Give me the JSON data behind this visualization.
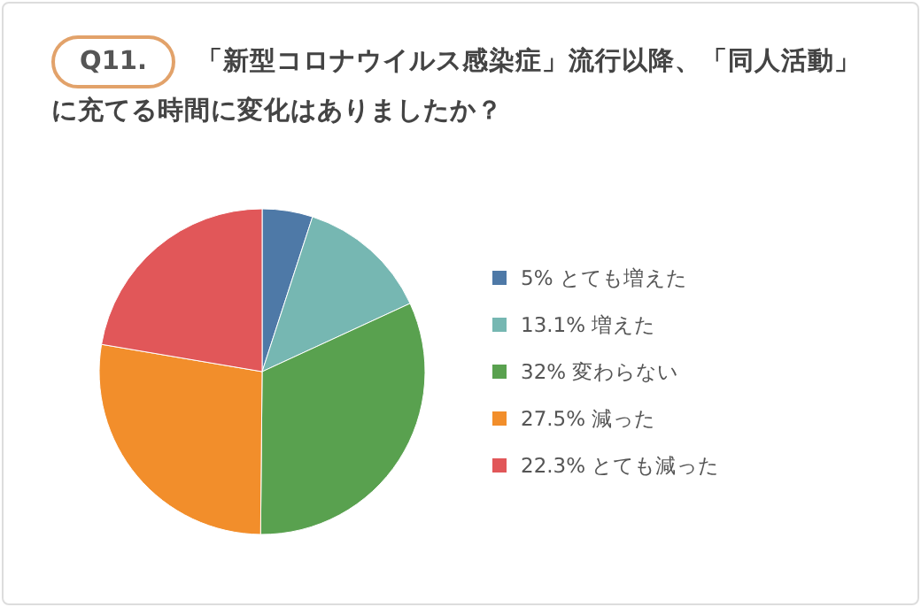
{
  "chart_data": {
    "type": "pie",
    "title": "Q11.",
    "subtitle": "「新型コロナウイルス感染症」流行以降、「同人活動」に充てる時間に変化はありましたか？",
    "categories": [
      "5% とても増えた",
      "13.1% 増えた",
      "32% 変わらない",
      "27.5% 減った",
      "22.3% とても減った"
    ],
    "values": [
      5,
      13.1,
      32,
      27.5,
      22.3
    ],
    "colors": [
      "#4e79a7",
      "#76b7b2",
      "#59a14f",
      "#f28e2b",
      "#e15759"
    ],
    "legend": "right"
  }
}
